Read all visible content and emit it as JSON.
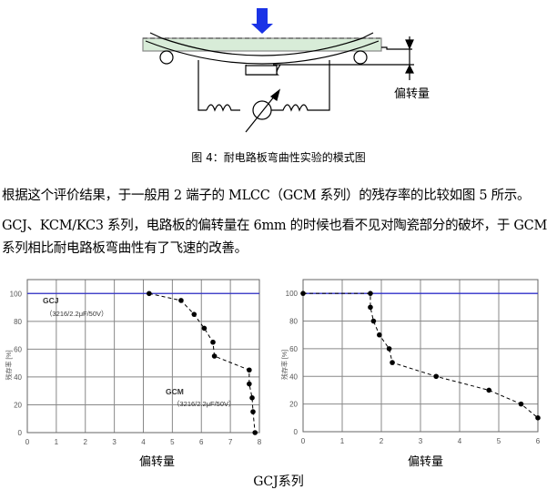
{
  "figure4": {
    "deflection_label": "偏转量",
    "caption": "图 4：耐电路板弯曲性实验的模式图"
  },
  "paragraphs": [
    "根据这个评价结果，于一般用 2 端子的 MLCC（GCM 系列）的残存率的比较如图 5 所示。",
    "GCJ、KCM/KC3 系列，电路板的偏转量在 6mm 的时候也看不见对陶瓷部分的破坏，于 GCM",
    "系列相比耐电路板弯曲性有了飞速的改善。"
  ],
  "bottom_caption": "GCJ系列",
  "colors": {
    "gcj_line": "#3333cc",
    "gcm_line": "#000000",
    "arrow": "#1a33e6",
    "board": "#d8ecd8"
  },
  "chart_data": [
    {
      "type": "line",
      "xlabel": "偏转量",
      "ylabel": "残存率 [%]",
      "xlim": [
        0,
        8
      ],
      "ylim": [
        0,
        110
      ],
      "xticks": [
        "0",
        "1",
        "2",
        "3",
        "4",
        "5",
        "6",
        "7",
        "8"
      ],
      "yticks": [
        "0",
        "20",
        "40",
        "60",
        "80",
        "100"
      ],
      "grid": true,
      "series": [
        {
          "name": "GCJ",
          "sub": "（3216/2.2μF/50V）",
          "style": "solid",
          "x": [
            0,
            8
          ],
          "y": [
            100,
            100
          ]
        },
        {
          "name": "GCM",
          "sub": "（3216/2.2μF/50V）",
          "style": "dashed-markers",
          "x": [
            4.2,
            5.3,
            5.75,
            6.1,
            6.4,
            6.45,
            7.65,
            7.65,
            7.75,
            7.78,
            7.85
          ],
          "y": [
            100,
            95,
            85,
            75,
            65,
            55,
            45,
            35,
            25,
            15,
            0
          ]
        }
      ]
    },
    {
      "type": "line",
      "xlabel": "偏转量",
      "ylabel": "残存率 [%]",
      "xlim": [
        0,
        6
      ],
      "ylim": [
        0,
        110
      ],
      "xticks": [
        "0",
        "1",
        "2",
        "3",
        "4",
        "5",
        "6"
      ],
      "yticks": [
        "0",
        "20",
        "40",
        "60",
        "80",
        "100"
      ],
      "grid": true,
      "series": [
        {
          "name": "GCJ",
          "sub": "（3216/10nF/630V）",
          "style": "solid",
          "x": [
            0,
            6
          ],
          "y": [
            100,
            100
          ]
        },
        {
          "name": "GCM",
          "sub": "（3216/10nF/630V）",
          "style": "dashed-markers",
          "x": [
            0,
            1.72,
            1.72,
            1.8,
            1.95,
            2.2,
            2.28,
            3.4,
            4.75,
            5.57,
            6
          ],
          "y": [
            100,
            100,
            90,
            80,
            70,
            60,
            50,
            40,
            30,
            20,
            10
          ]
        }
      ]
    }
  ]
}
